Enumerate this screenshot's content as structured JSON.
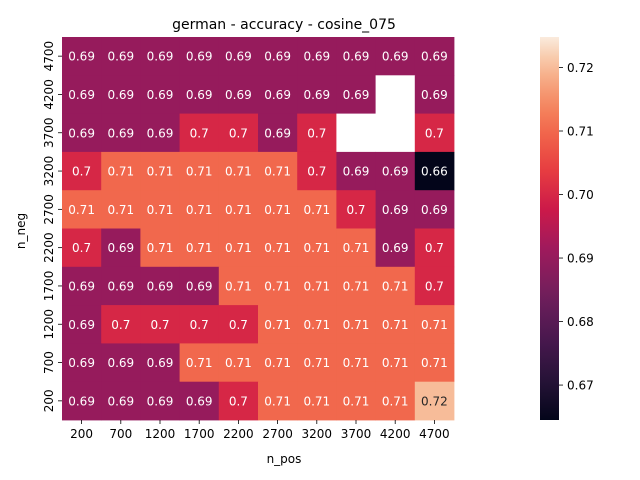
{
  "chart_data": {
    "type": "heatmap",
    "title": "german - accuracy - cosine_075",
    "xlabel": "n_pos",
    "ylabel": "n_neg",
    "x_categories": [
      "200",
      "700",
      "1200",
      "1700",
      "2200",
      "2700",
      "3200",
      "3700",
      "4200",
      "4700"
    ],
    "y_categories": [
      "4700",
      "4200",
      "3700",
      "3200",
      "2700",
      "2200",
      "1700",
      "1200",
      "700",
      "200"
    ],
    "values": [
      [
        0.69,
        0.69,
        0.69,
        0.69,
        0.69,
        0.69,
        0.69,
        0.69,
        0.69,
        0.69
      ],
      [
        0.69,
        0.69,
        0.69,
        0.69,
        0.69,
        0.69,
        0.69,
        0.69,
        null,
        0.69
      ],
      [
        0.69,
        0.69,
        0.69,
        0.7,
        0.7,
        0.69,
        0.7,
        null,
        null,
        0.7
      ],
      [
        0.7,
        0.71,
        0.71,
        0.71,
        0.71,
        0.71,
        0.7,
        0.69,
        0.69,
        0.66
      ],
      [
        0.71,
        0.71,
        0.71,
        0.71,
        0.71,
        0.71,
        0.71,
        0.7,
        0.69,
        0.69
      ],
      [
        0.7,
        0.69,
        0.71,
        0.71,
        0.71,
        0.71,
        0.71,
        0.71,
        0.69,
        0.7
      ],
      [
        0.69,
        0.69,
        0.69,
        0.69,
        0.71,
        0.71,
        0.71,
        0.71,
        0.71,
        0.7
      ],
      [
        0.69,
        0.7,
        0.7,
        0.7,
        0.7,
        0.71,
        0.71,
        0.71,
        0.71,
        0.71
      ],
      [
        0.69,
        0.69,
        0.69,
        0.71,
        0.71,
        0.71,
        0.71,
        0.71,
        0.71,
        0.71
      ],
      [
        0.69,
        0.69,
        0.69,
        0.69,
        0.7,
        0.71,
        0.71,
        0.71,
        0.71,
        0.72
      ]
    ],
    "cell_labels": [
      [
        "0.69",
        "0.69",
        "0.69",
        "0.69",
        "0.69",
        "0.69",
        "0.69",
        "0.69",
        "0.69",
        "0.69"
      ],
      [
        "0.69",
        "0.69",
        "0.69",
        "0.69",
        "0.69",
        "0.69",
        "0.69",
        "0.69",
        "",
        "0.69"
      ],
      [
        "0.69",
        "0.69",
        "0.69",
        "0.7",
        "0.7",
        "0.69",
        "0.7",
        "",
        "",
        "0.7"
      ],
      [
        "0.7",
        "0.71",
        "0.71",
        "0.71",
        "0.71",
        "0.71",
        "0.7",
        "0.69",
        "0.69",
        "0.66"
      ],
      [
        "0.71",
        "0.71",
        "0.71",
        "0.71",
        "0.71",
        "0.71",
        "0.71",
        "0.7",
        "0.69",
        "0.69"
      ],
      [
        "0.7",
        "0.69",
        "0.71",
        "0.71",
        "0.71",
        "0.71",
        "0.71",
        "0.71",
        "0.69",
        "0.7"
      ],
      [
        "0.69",
        "0.69",
        "0.69",
        "0.69",
        "0.71",
        "0.71",
        "0.71",
        "0.71",
        "0.71",
        "0.7"
      ],
      [
        "0.69",
        "0.7",
        "0.7",
        "0.7",
        "0.7",
        "0.71",
        "0.71",
        "0.71",
        "0.71",
        "0.71"
      ],
      [
        "0.69",
        "0.69",
        "0.69",
        "0.71",
        "0.71",
        "0.71",
        "0.71",
        "0.71",
        "0.71",
        "0.71"
      ],
      [
        "0.69",
        "0.69",
        "0.69",
        "0.69",
        "0.7",
        "0.71",
        "0.71",
        "0.71",
        "0.71",
        "0.72"
      ]
    ],
    "colorbar": {
      "colormap": "rocket",
      "vmin": 0.6645,
      "vmax": 0.7248,
      "ticks": [
        0.67,
        0.68,
        0.69,
        0.7,
        0.71,
        0.72
      ],
      "tick_labels": [
        "0.67",
        "0.68",
        "0.69",
        "0.70",
        "0.71",
        "0.72"
      ]
    },
    "missing_color": "#ffffff"
  }
}
